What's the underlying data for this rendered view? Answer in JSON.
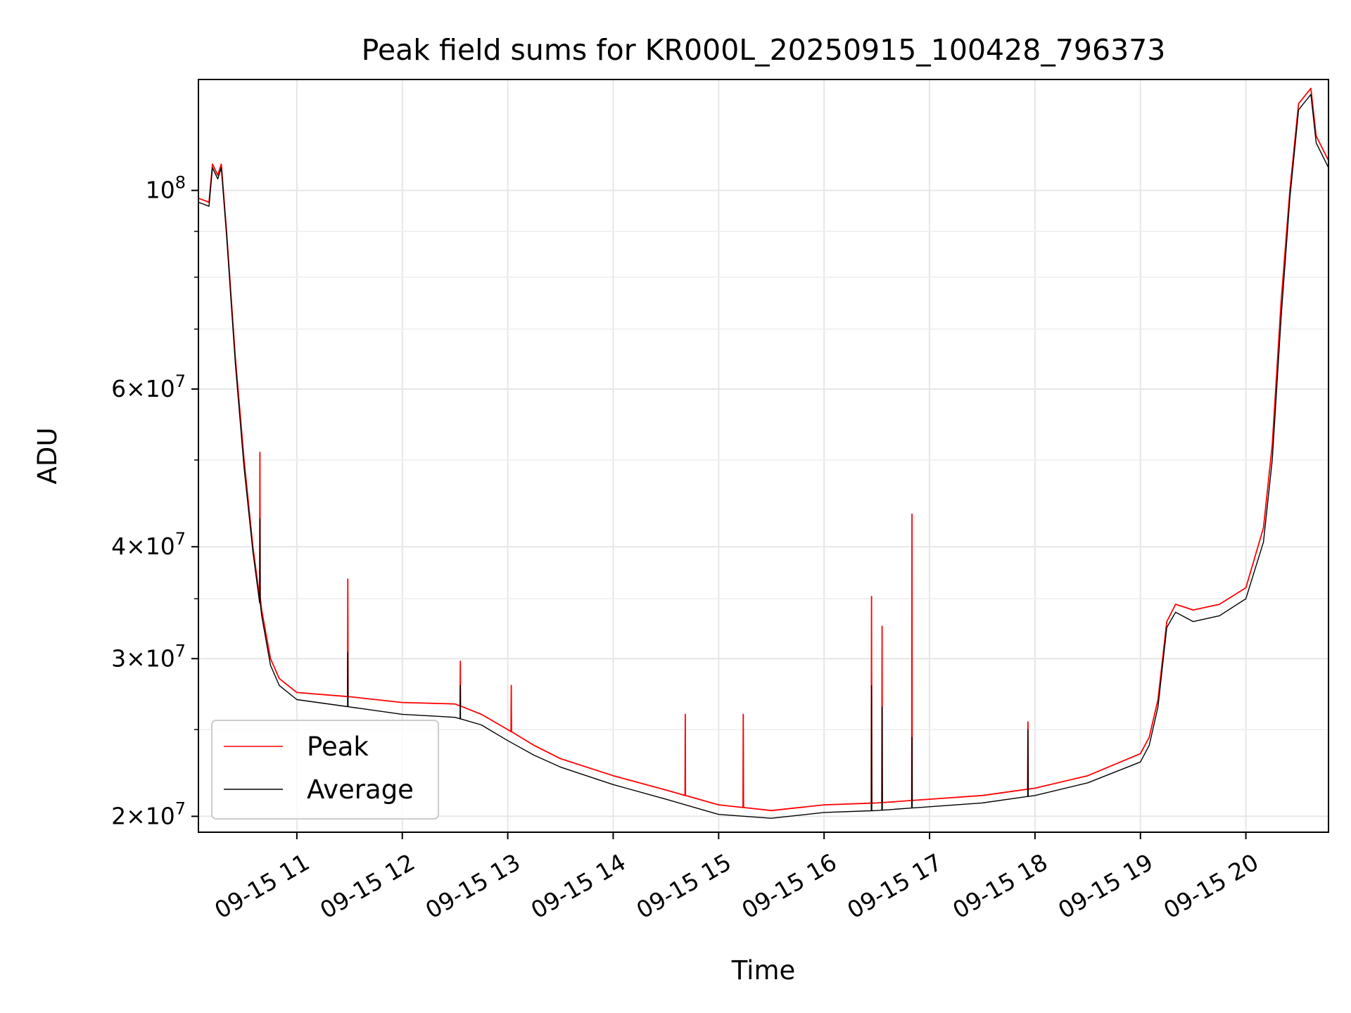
{
  "chart_data": {
    "type": "line",
    "title": "Peak field sums for KR000L_20250915_100428_796373",
    "xlabel": "Time",
    "ylabel": "ADU",
    "yscale": "log",
    "ylim": [
      19200000,
      133000000
    ],
    "xlim": [
      "09-15 10:04",
      "09-15 20:47"
    ],
    "grid": true,
    "legend_position": "lower-left",
    "x_tick_labels": [
      "09-15 11",
      "09-15 12",
      "09-15 13",
      "09-15 14",
      "09-15 15",
      "09-15 16",
      "09-15 17",
      "09-15 18",
      "09-15 19",
      "09-15 20"
    ],
    "y_tick_labels": [
      {
        "value": 100000000,
        "mantissa": "",
        "exponent": "8",
        "base": "10"
      },
      {
        "value": 60000000,
        "mantissa": "6",
        "exponent": "7",
        "base": "10"
      },
      {
        "value": 40000000,
        "mantissa": "4",
        "exponent": "7",
        "base": "10"
      },
      {
        "value": 30000000,
        "mantissa": "3",
        "exponent": "7",
        "base": "10"
      },
      {
        "value": 20000000,
        "mantissa": "2",
        "exponent": "7",
        "base": "10"
      }
    ],
    "series": [
      {
        "name": "Peak",
        "color": "#ff0000",
        "points": [
          [
            "09-15 10:04",
            98000000
          ],
          [
            "09-15 10:10",
            97000000
          ],
          [
            "09-15 10:12",
            107000000
          ],
          [
            "09-15 10:15",
            104000000
          ],
          [
            "09-15 10:17",
            107000000
          ],
          [
            "09-15 10:20",
            90000000
          ],
          [
            "09-15 10:25",
            65000000
          ],
          [
            "09-15 10:30",
            50000000
          ],
          [
            "09-15 10:35",
            40000000
          ],
          [
            "09-15 10:40",
            34000000
          ],
          [
            "09-15 10:45",
            30000000
          ],
          [
            "09-15 10:50",
            28500000
          ],
          [
            "09-15 11:00",
            27500000
          ],
          [
            "09-15 11:30",
            27200000
          ],
          [
            "09-15 12:00",
            26800000
          ],
          [
            "09-15 12:30",
            26700000
          ],
          [
            "09-15 12:45",
            26000000
          ],
          [
            "09-15 13:00",
            25000000
          ],
          [
            "09-15 13:15",
            24000000
          ],
          [
            "09-15 13:30",
            23200000
          ],
          [
            "09-15 14:00",
            22200000
          ],
          [
            "09-15 14:30",
            21400000
          ],
          [
            "09-15 15:00",
            20600000
          ],
          [
            "09-15 15:30",
            20300000
          ],
          [
            "09-15 16:00",
            20600000
          ],
          [
            "09-15 16:30",
            20700000
          ],
          [
            "09-15 17:00",
            20900000
          ],
          [
            "09-15 17:30",
            21100000
          ],
          [
            "09-15 18:00",
            21500000
          ],
          [
            "09-15 18:30",
            22200000
          ],
          [
            "09-15 19:00",
            23500000
          ],
          [
            "09-15 19:05",
            24500000
          ],
          [
            "09-15 19:10",
            27000000
          ],
          [
            "09-15 19:15",
            33000000
          ],
          [
            "09-15 19:20",
            34500000
          ],
          [
            "09-15 19:30",
            34000000
          ],
          [
            "09-15 19:45",
            34500000
          ],
          [
            "09-15 20:00",
            36000000
          ],
          [
            "09-15 20:10",
            42000000
          ],
          [
            "09-15 20:15",
            52000000
          ],
          [
            "09-15 20:20",
            75000000
          ],
          [
            "09-15 20:25",
            100000000
          ],
          [
            "09-15 20:30",
            125000000
          ],
          [
            "09-15 20:37",
            130000000
          ],
          [
            "09-15 20:40",
            115000000
          ],
          [
            "09-15 20:47",
            108000000
          ]
        ],
        "spikes": [
          [
            "09-15 10:39",
            51000000
          ],
          [
            "09-15 11:29",
            36800000
          ],
          [
            "09-15 12:33",
            29800000
          ],
          [
            "09-15 13:02",
            28000000
          ],
          [
            "09-15 14:41",
            26000000
          ],
          [
            "09-15 15:14",
            26000000
          ],
          [
            "09-15 16:27",
            35200000
          ],
          [
            "09-15 16:33",
            32600000
          ],
          [
            "09-15 16:50",
            43500000
          ],
          [
            "09-15 17:56",
            25500000
          ]
        ]
      },
      {
        "name": "Average",
        "color": "#000000",
        "points": [
          [
            "09-15 10:04",
            97000000
          ],
          [
            "09-15 10:10",
            96000000
          ],
          [
            "09-15 10:12",
            106000000
          ],
          [
            "09-15 10:15",
            103000000
          ],
          [
            "09-15 10:17",
            106000000
          ],
          [
            "09-15 10:20",
            89000000
          ],
          [
            "09-15 10:25",
            64000000
          ],
          [
            "09-15 10:30",
            49000000
          ],
          [
            "09-15 10:35",
            39500000
          ],
          [
            "09-15 10:40",
            33500000
          ],
          [
            "09-15 10:45",
            29500000
          ],
          [
            "09-15 10:50",
            28000000
          ],
          [
            "09-15 11:00",
            27000000
          ],
          [
            "09-15 11:30",
            26500000
          ],
          [
            "09-15 12:00",
            26000000
          ],
          [
            "09-15 12:30",
            25800000
          ],
          [
            "09-15 12:45",
            25300000
          ],
          [
            "09-15 13:00",
            24300000
          ],
          [
            "09-15 13:15",
            23400000
          ],
          [
            "09-15 13:30",
            22700000
          ],
          [
            "09-15 14:00",
            21700000
          ],
          [
            "09-15 14:30",
            20900000
          ],
          [
            "09-15 15:00",
            20100000
          ],
          [
            "09-15 15:30",
            19900000
          ],
          [
            "09-15 16:00",
            20200000
          ],
          [
            "09-15 16:30",
            20300000
          ],
          [
            "09-15 17:00",
            20500000
          ],
          [
            "09-15 17:30",
            20700000
          ],
          [
            "09-15 18:00",
            21100000
          ],
          [
            "09-15 18:30",
            21800000
          ],
          [
            "09-15 19:00",
            23000000
          ],
          [
            "09-15 19:05",
            24000000
          ],
          [
            "09-15 19:10",
            26500000
          ],
          [
            "09-15 19:15",
            32500000
          ],
          [
            "09-15 19:20",
            33800000
          ],
          [
            "09-15 19:30",
            33000000
          ],
          [
            "09-15 19:45",
            33500000
          ],
          [
            "09-15 20:00",
            35000000
          ],
          [
            "09-15 20:10",
            40500000
          ],
          [
            "09-15 20:15",
            50000000
          ],
          [
            "09-15 20:20",
            72000000
          ],
          [
            "09-15 20:25",
            98000000
          ],
          [
            "09-15 20:30",
            123000000
          ],
          [
            "09-15 20:37",
            128000000
          ],
          [
            "09-15 20:40",
            113000000
          ],
          [
            "09-15 20:47",
            106000000
          ]
        ],
        "spikes": [
          [
            "09-15 10:39",
            43000000
          ],
          [
            "09-15 11:29",
            30500000
          ],
          [
            "09-15 12:33",
            28000000
          ],
          [
            "09-15 16:27",
            28000000
          ],
          [
            "09-15 16:33",
            26500000
          ],
          [
            "09-15 16:50",
            24500000
          ],
          [
            "09-15 17:56",
            25000000
          ]
        ]
      }
    ]
  }
}
